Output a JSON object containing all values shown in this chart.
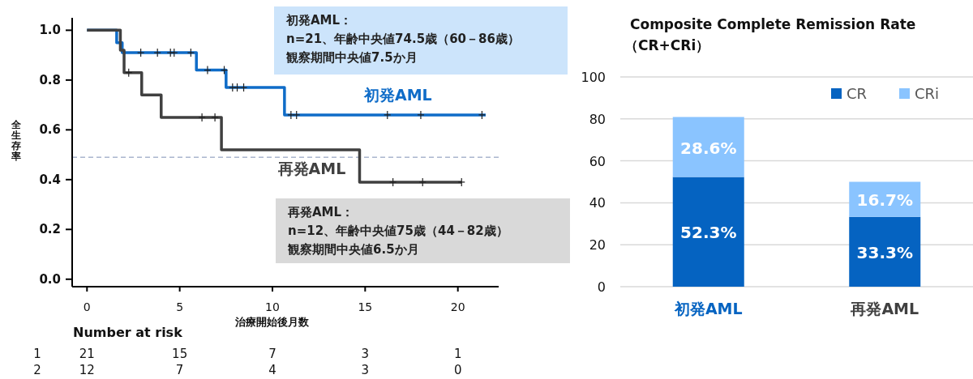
{
  "chart_data": [
    {
      "type": "step",
      "xlabel": "治療開始後月数",
      "ylabel": "全生存率",
      "xlim": [
        -0.8,
        22.2
      ],
      "ylim": [
        -0.03,
        1.05
      ],
      "xticks": [
        0,
        5,
        10,
        15,
        20
      ],
      "yticks": [
        {
          "value": 0,
          "label": "0.0"
        },
        {
          "value": 0.2,
          "label": "0.2"
        },
        {
          "value": 0.4,
          "label": "0.4"
        },
        {
          "value": 0.6,
          "label": "0.6"
        },
        {
          "value": 0.8,
          "label": "0.8"
        },
        {
          "value": 1,
          "label": "1.0"
        }
      ],
      "series": [
        {
          "name": "初発AML",
          "color": "#0f6cc8",
          "x": [
            0,
            1.6,
            1.9,
            5.9,
            7.5,
            10.65,
            21.5
          ],
          "values": [
            1,
            0.95,
            0.91,
            0.84,
            0.77,
            0.66,
            0.66
          ]
        },
        {
          "name": "再発AML",
          "color": "#404040",
          "x": [
            0,
            1.8,
            2.0,
            2.95,
            4.0,
            7.25,
            14.7,
            20.2
          ],
          "values": [
            1,
            0.92,
            0.83,
            0.74,
            0.65,
            0.52,
            0.39,
            0.39
          ]
        },
        {
          "type": "scatter",
          "marker": "cross",
          "color": "#222222",
          "x": [
            2.9,
            3.8,
            4.5,
            4.7,
            5.6,
            6.5,
            7.4,
            7.85,
            8.1,
            8.45,
            11.0,
            11.3,
            16.2,
            18.0,
            21.3
          ],
          "values": [
            0.91,
            0.91,
            0.91,
            0.91,
            0.91,
            0.84,
            0.84,
            0.77,
            0.77,
            0.77,
            0.66,
            0.66,
            0.66,
            0.66,
            0.66
          ]
        },
        {
          "type": "scatter",
          "marker": "cross",
          "color": "#222222",
          "x": [
            2.25,
            6.2,
            6.9,
            16.5,
            18.1,
            20.2
          ],
          "values": [
            0.83,
            0.65,
            0.65,
            0.39,
            0.39,
            0.39
          ]
        }
      ],
      "ref_lines": [
        {
          "axis": "y",
          "value": 0.49,
          "color": "#7f8fb5",
          "line_style": "dashed"
        }
      ],
      "annotations": [
        "初発AML：",
        "n=21、年齢中央値74.5歳（60－86歳）",
        "観察期間中央値7.5か月",
        "再発AML：",
        "n=12、年齢中央値75歳（44－82歳）",
        "観察期間中央値6.5か月",
        "Number at risk",
        "1",
        "21",
        "15",
        "7",
        "3",
        "1",
        "2",
        "12",
        "7",
        "4",
        "3",
        "0"
      ]
    },
    {
      "type": "bar",
      "title": "Composite Complete Remission Rate",
      "subtitle": "（CR+CRi）",
      "categories": [
        "初発AML",
        "再発AML"
      ],
      "stacked": true,
      "ylim": [
        0,
        100
      ],
      "yticks": [
        0,
        20,
        40,
        60,
        80,
        100
      ],
      "grid": "y",
      "legend": "top right",
      "series": [
        {
          "name": "CR",
          "color": "#0563c1",
          "values": [
            52.3,
            33.3
          ],
          "value_labels": [
            "52.3%",
            "33.3%"
          ]
        },
        {
          "name": "CRi",
          "color": "#8ac4ff",
          "values": [
            28.6,
            16.7
          ],
          "value_labels": [
            "28.6%",
            "16.7%"
          ]
        }
      ]
    }
  ]
}
